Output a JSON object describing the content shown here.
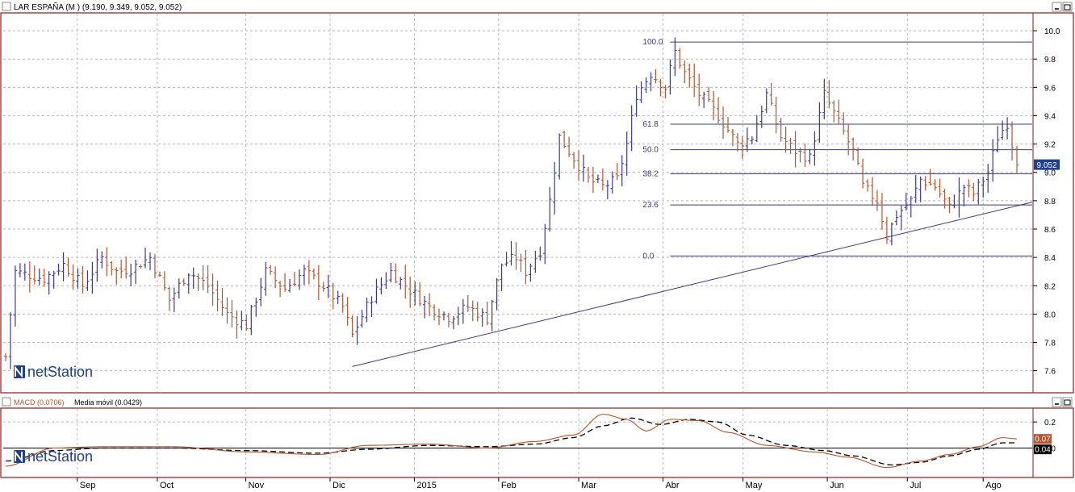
{
  "top_panel": {
    "title": "LAR ESPAÑA (M ) (9.190, 9.349, 9.052, 9.052)",
    "last_price_badge": "9.052",
    "watermark": "netStation"
  },
  "bottom_panel": {
    "macd_label": "MACD (0.0706)",
    "ma_label": "Media móvil (0.0429)",
    "macd_badge": "0.07",
    "ma_badge": "0.04",
    "watermark": "netStation"
  },
  "window_buttons": [
    "minimize",
    "maximize"
  ],
  "colors": {
    "up_bar": "#3a3a8c",
    "down_bar": "#b5552f",
    "fib_line": "#3b3b7d",
    "macd_line": "#b5552f",
    "ma_line": "#000000",
    "frame": "#8b1a1a",
    "grid": "#b8b8b8",
    "badge_blue": "#1f3f8f",
    "badge_red": "#b5552f",
    "badge_black": "#000000"
  },
  "chart_data": [
    {
      "type": "ohlc-bar",
      "title": "LAR ESPAÑA (M ) (9.190, 9.349, 9.052, 9.052)",
      "ylim": [
        7.45,
        10.12
      ],
      "y_ticks": [
        "10.0",
        "9.8",
        "9.6",
        "9.4",
        "9.2",
        "9.0",
        "8.8",
        "8.6",
        "8.4",
        "8.2",
        "8.0",
        "7.8",
        "7.6"
      ],
      "x_ticks": [
        "Sep",
        "Oct",
        "Nov",
        "Dic",
        "2015",
        "Feb",
        "Mar",
        "Abr",
        "May",
        "Jun",
        "Jul",
        "Ago"
      ],
      "grid": true,
      "last_value": 9.052,
      "fibonacci": {
        "range_high": 9.92,
        "range_low": 8.41,
        "levels": [
          {
            "label": "100.0",
            "value": 9.92
          },
          {
            "label": "61.8",
            "value": 9.34
          },
          {
            "label": "50.0",
            "value": 9.16
          },
          {
            "label": "38.2",
            "value": 8.99
          },
          {
            "label": "23.6",
            "value": 8.77
          },
          {
            "label": "0.0",
            "value": 8.41
          }
        ]
      },
      "trendline": {
        "from": [
          "Dic",
          7.63
        ],
        "to": [
          "Ago",
          8.79
        ]
      },
      "price_path": [
        [
          0,
          7.7
        ],
        [
          2,
          8.3
        ],
        [
          8,
          8.25
        ],
        [
          12,
          8.35
        ],
        [
          16,
          8.2
        ],
        [
          20,
          8.4
        ],
        [
          23,
          8.3
        ],
        [
          26,
          8.32
        ],
        [
          30,
          8.4
        ],
        [
          34,
          8.1
        ],
        [
          38,
          8.3
        ],
        [
          42,
          8.2
        ],
        [
          46,
          8.0
        ],
        [
          50,
          7.92
        ],
        [
          54,
          8.3
        ],
        [
          58,
          8.18
        ],
        [
          62,
          8.3
        ],
        [
          66,
          8.2
        ],
        [
          70,
          8.05
        ],
        [
          72,
          7.85
        ],
        [
          76,
          8.12
        ],
        [
          80,
          8.3
        ],
        [
          84,
          8.17
        ],
        [
          88,
          8.05
        ],
        [
          92,
          7.98
        ],
        [
          96,
          8.05
        ],
        [
          100,
          7.97
        ],
        [
          103,
          8.35
        ],
        [
          106,
          8.4
        ],
        [
          108,
          8.3
        ],
        [
          111,
          8.45
        ],
        [
          113,
          8.8
        ],
        [
          115,
          9.25
        ],
        [
          118,
          9.1
        ],
        [
          121,
          8.95
        ],
        [
          124,
          8.9
        ],
        [
          127,
          8.95
        ],
        [
          129,
          9.2
        ],
        [
          131,
          9.55
        ],
        [
          134,
          9.7
        ],
        [
          137,
          9.6
        ],
        [
          139,
          9.85
        ],
        [
          141,
          9.7
        ],
        [
          144,
          9.55
        ],
        [
          148,
          9.4
        ],
        [
          152,
          9.2
        ],
        [
          155,
          9.25
        ],
        [
          158,
          9.55
        ],
        [
          161,
          9.25
        ],
        [
          164,
          9.15
        ],
        [
          167,
          9.1
        ],
        [
          170,
          9.55
        ],
        [
          173,
          9.35
        ],
        [
          176,
          9.15
        ],
        [
          178,
          8.9
        ],
        [
          181,
          8.8
        ],
        [
          183,
          8.55
        ],
        [
          185,
          8.7
        ],
        [
          188,
          8.8
        ],
        [
          190,
          8.95
        ],
        [
          193,
          8.9
        ],
        [
          196,
          8.75
        ],
        [
          199,
          8.9
        ],
        [
          201,
          8.85
        ],
        [
          204,
          9.0
        ],
        [
          206,
          9.25
        ],
        [
          208,
          9.35
        ],
        [
          210,
          9.05
        ]
      ]
    },
    {
      "type": "line",
      "title": "MACD (0.0706)",
      "ylim": [
        -0.22,
        0.3
      ],
      "y_ticks": [
        "0.2",
        "0.0"
      ],
      "grid": true,
      "series": [
        {
          "name": "MACD (0.0706)",
          "last_value": 0.07,
          "x": [
            0,
            10,
            20,
            35,
            50,
            65,
            75,
            88,
            100,
            110,
            118,
            124,
            129,
            133,
            138,
            144,
            150,
            158,
            168,
            175,
            183,
            190,
            196,
            202,
            207,
            210
          ],
          "values": [
            -0.14,
            0.0,
            0.01,
            0.01,
            -0.03,
            -0.05,
            0.02,
            0.03,
            0.0,
            0.05,
            0.1,
            0.26,
            0.22,
            0.13,
            0.22,
            0.21,
            0.12,
            0.02,
            -0.03,
            -0.07,
            -0.15,
            -0.1,
            -0.05,
            0.01,
            0.08,
            0.07
          ]
        },
        {
          "name": "Media móvil (0.0429)",
          "last_value": 0.04,
          "x": [
            0,
            10,
            20,
            35,
            50,
            65,
            75,
            88,
            100,
            110,
            118,
            124,
            130,
            136,
            142,
            148,
            154,
            162,
            170,
            176,
            184,
            190,
            196,
            202,
            207,
            210
          ],
          "values": [
            -0.1,
            -0.02,
            0.0,
            0.0,
            -0.02,
            -0.04,
            -0.01,
            0.02,
            0.01,
            0.03,
            0.08,
            0.17,
            0.23,
            0.18,
            0.22,
            0.2,
            0.1,
            0.02,
            -0.02,
            -0.06,
            -0.13,
            -0.11,
            -0.06,
            -0.01,
            0.04,
            0.04
          ]
        }
      ]
    }
  ]
}
